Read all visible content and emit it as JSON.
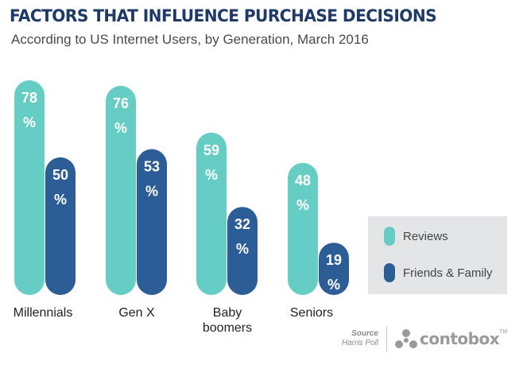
{
  "title": "FACTORS THAT INFLUENCE PURCHASE DECISIONS",
  "subtitle": "According to US Internet Users, by Generation, March 2016",
  "colors": {
    "reviews": "#66cdc5",
    "friends_family": "#2c5d96",
    "legend_bg": "#e4e5e7",
    "title": "#1f3a66"
  },
  "legend": {
    "items": [
      {
        "label": "Reviews"
      },
      {
        "label": "Friends & Family"
      }
    ]
  },
  "source": {
    "label": "Source",
    "name": "Harris Poll"
  },
  "brand": {
    "name": "contobox",
    "tm": "TM"
  },
  "chart_data": {
    "type": "bar",
    "categories": [
      "Millennials",
      "Gen X",
      "Baby boomers",
      "Seniors"
    ],
    "series": [
      {
        "name": "Reviews",
        "values": [
          78,
          76,
          59,
          48
        ]
      },
      {
        "name": "Friends & Family",
        "values": [
          50,
          53,
          32,
          19
        ]
      }
    ],
    "value_suffix": "%",
    "legend_position": "right",
    "grid": false,
    "title": "FACTORS THAT INFLUENCE PURCHASE DECISIONS"
  }
}
